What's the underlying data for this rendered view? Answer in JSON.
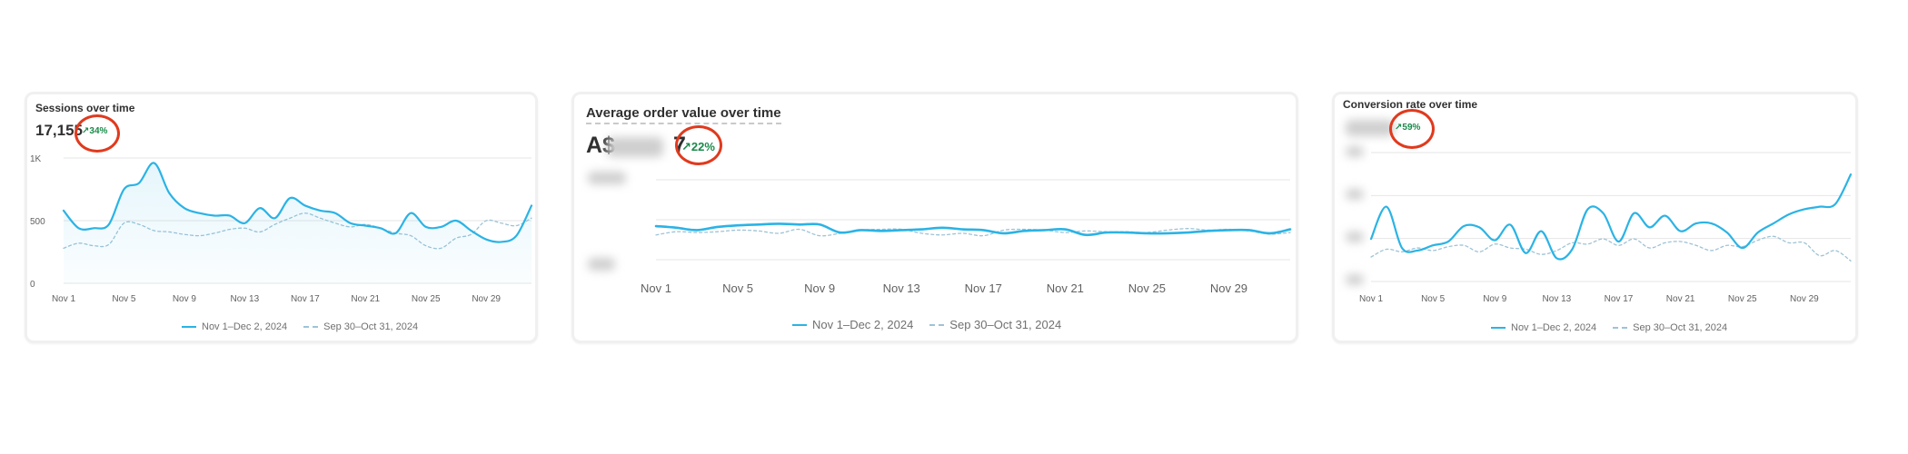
{
  "colors": {
    "current": "#2bb3e5",
    "previous": "#9ec3d6",
    "grid": "#e6e6e6",
    "badge": "#1a8a4a",
    "highlight": "#e03a1e"
  },
  "cards": [
    {
      "title": "Sessions over time",
      "kpi": "17,155",
      "change": "34%",
      "legend_current": "Nov 1–Dec 2, 2024",
      "legend_previous": "Sep 30–Oct 31, 2024"
    },
    {
      "title": "Average order value over time",
      "kpi": "A$",
      "kpi_suffix": "7",
      "change": "22%",
      "legend_current": "Nov 1–Dec 2, 2024",
      "legend_previous": "Sep 30–Oct 31, 2024"
    },
    {
      "title": "Conversion rate over time",
      "change": "59%",
      "legend_current": "Nov 1–Dec 2, 2024",
      "legend_previous": "Sep 30–Oct 31, 2024"
    }
  ],
  "chart_data": [
    {
      "type": "line",
      "title": "Sessions over time",
      "x": [
        "Nov 1",
        "Nov 2",
        "Nov 3",
        "Nov 4",
        "Nov 5",
        "Nov 6",
        "Nov 7",
        "Nov 8",
        "Nov 9",
        "Nov 10",
        "Nov 11",
        "Nov 12",
        "Nov 13",
        "Nov 14",
        "Nov 15",
        "Nov 16",
        "Nov 17",
        "Nov 18",
        "Nov 19",
        "Nov 20",
        "Nov 21",
        "Nov 22",
        "Nov 23",
        "Nov 24",
        "Nov 25",
        "Nov 26",
        "Nov 27",
        "Nov 28",
        "Nov 29",
        "Nov 30",
        "Dec 1",
        "Dec 2"
      ],
      "x_ticks": [
        "Nov 1",
        "Nov 5",
        "Nov 9",
        "Nov 13",
        "Nov 17",
        "Nov 21",
        "Nov 25",
        "Nov 29"
      ],
      "y_ticks": [
        "0",
        "500",
        "1K"
      ],
      "ylim": [
        0,
        1000
      ],
      "series": [
        {
          "name": "Nov 1–Dec 2, 2024",
          "style": "solid",
          "values": [
            580,
            440,
            440,
            470,
            750,
            800,
            960,
            720,
            600,
            560,
            540,
            540,
            480,
            600,
            520,
            680,
            620,
            580,
            560,
            480,
            460,
            440,
            400,
            560,
            450,
            450,
            500,
            420,
            350,
            330,
            380,
            620
          ]
        },
        {
          "name": "Sep 30–Oct 31, 2024",
          "style": "dashed",
          "values": [
            280,
            320,
            300,
            310,
            480,
            470,
            420,
            410,
            390,
            380,
            400,
            430,
            440,
            410,
            470,
            520,
            560,
            520,
            480,
            450,
            470,
            440,
            400,
            380,
            300,
            280,
            360,
            390,
            500,
            480,
            460,
            520
          ]
        }
      ]
    },
    {
      "type": "line",
      "title": "Average order value over time",
      "x": [
        "Nov 1",
        "Nov 2",
        "Nov 3",
        "Nov 4",
        "Nov 5",
        "Nov 6",
        "Nov 7",
        "Nov 8",
        "Nov 9",
        "Nov 10",
        "Nov 11",
        "Nov 12",
        "Nov 13",
        "Nov 14",
        "Nov 15",
        "Nov 16",
        "Nov 17",
        "Nov 18",
        "Nov 19",
        "Nov 20",
        "Nov 21",
        "Nov 22",
        "Nov 23",
        "Nov 24",
        "Nov 25",
        "Nov 26",
        "Nov 27",
        "Nov 28",
        "Nov 29",
        "Nov 30",
        "Dec 1",
        "Dec 2"
      ],
      "x_ticks": [
        "Nov 1",
        "Nov 5",
        "Nov 9",
        "Nov 13",
        "Nov 17",
        "Nov 21",
        "Nov 25",
        "Nov 29"
      ],
      "ylim": [
        0,
        1
      ],
      "series": [
        {
          "name": "Nov 1–Dec 2, 2024",
          "style": "solid",
          "values": [
            0.42,
            0.4,
            0.37,
            0.41,
            0.43,
            0.44,
            0.45,
            0.44,
            0.44,
            0.34,
            0.37,
            0.36,
            0.37,
            0.38,
            0.4,
            0.38,
            0.37,
            0.33,
            0.36,
            0.37,
            0.38,
            0.31,
            0.34,
            0.34,
            0.33,
            0.33,
            0.34,
            0.36,
            0.37,
            0.37,
            0.33,
            0.38
          ]
        },
        {
          "name": "Sep 30–Oct 31, 2024",
          "style": "dashed",
          "values": [
            0.31,
            0.35,
            0.34,
            0.35,
            0.37,
            0.36,
            0.33,
            0.38,
            0.3,
            0.33,
            0.37,
            0.38,
            0.38,
            0.33,
            0.31,
            0.33,
            0.3,
            0.37,
            0.38,
            0.37,
            0.34,
            0.36,
            0.35,
            0.35,
            0.34,
            0.37,
            0.39,
            0.37,
            0.38,
            0.36,
            0.32,
            0.34
          ]
        }
      ]
    },
    {
      "type": "line",
      "title": "Conversion rate over time",
      "x": [
        "Nov 1",
        "Nov 2",
        "Nov 3",
        "Nov 4",
        "Nov 5",
        "Nov 6",
        "Nov 7",
        "Nov 8",
        "Nov 9",
        "Nov 10",
        "Nov 11",
        "Nov 12",
        "Nov 13",
        "Nov 14",
        "Nov 15",
        "Nov 16",
        "Nov 17",
        "Nov 18",
        "Nov 19",
        "Nov 20",
        "Nov 21",
        "Nov 22",
        "Nov 23",
        "Nov 24",
        "Nov 25",
        "Nov 26",
        "Nov 27",
        "Nov 28",
        "Nov 29",
        "Nov 30",
        "Dec 1",
        "Dec 2"
      ],
      "x_ticks": [
        "Nov 1",
        "Nov 5",
        "Nov 9",
        "Nov 13",
        "Nov 17",
        "Nov 21",
        "Nov 25",
        "Nov 29"
      ],
      "ylim": [
        0,
        1
      ],
      "series": [
        {
          "name": "Nov 1–Dec 2, 2024",
          "style": "solid",
          "values": [
            0.33,
            0.58,
            0.26,
            0.24,
            0.28,
            0.31,
            0.43,
            0.42,
            0.32,
            0.44,
            0.22,
            0.39,
            0.18,
            0.25,
            0.56,
            0.53,
            0.31,
            0.53,
            0.42,
            0.51,
            0.39,
            0.45,
            0.45,
            0.38,
            0.26,
            0.38,
            0.45,
            0.52,
            0.56,
            0.58,
            0.6,
            0.83
          ]
        },
        {
          "name": "Sep 30–Oct 31, 2024",
          "style": "dashed",
          "values": [
            0.19,
            0.25,
            0.23,
            0.26,
            0.24,
            0.27,
            0.28,
            0.23,
            0.29,
            0.26,
            0.25,
            0.21,
            0.24,
            0.3,
            0.29,
            0.33,
            0.28,
            0.33,
            0.26,
            0.3,
            0.31,
            0.28,
            0.24,
            0.28,
            0.27,
            0.32,
            0.35,
            0.3,
            0.3,
            0.2,
            0.24,
            0.16
          ]
        }
      ]
    }
  ]
}
